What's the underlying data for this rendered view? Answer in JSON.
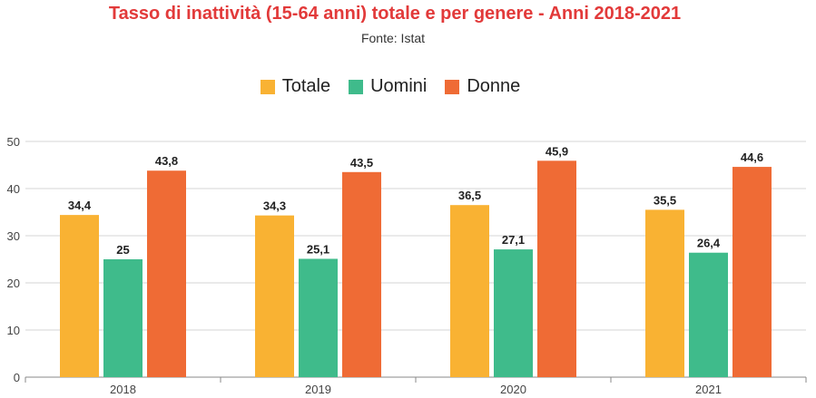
{
  "chart_data": {
    "type": "bar",
    "title": "Tasso di inattività (15-64 anni) totale e per genere - Anni 2018-2021",
    "subtitle": "Fonte: Istat",
    "categories": [
      "2018",
      "2019",
      "2020",
      "2021"
    ],
    "series": [
      {
        "name": "Totale",
        "color": "#f9b233",
        "values": [
          34.4,
          34.3,
          36.5,
          35.5
        ],
        "labels": [
          "34,4",
          "34,3",
          "36,5",
          "35,5"
        ]
      },
      {
        "name": "Uomini",
        "color": "#3fbb8b",
        "values": [
          25,
          25.1,
          27.1,
          26.4
        ],
        "labels": [
          "25",
          "25,1",
          "27,1",
          "26,4"
        ]
      },
      {
        "name": "Donne",
        "color": "#ef6b35",
        "values": [
          43.8,
          43.5,
          45.9,
          44.6
        ],
        "labels": [
          "43,8",
          "43,5",
          "45,9",
          "44,6"
        ]
      }
    ],
    "ylim": [
      0,
      50
    ],
    "yticks": [
      "0",
      "10",
      "20",
      "30",
      "40",
      "50"
    ],
    "grid": true,
    "legend": "top-center",
    "xlabel": "",
    "ylabel": ""
  }
}
